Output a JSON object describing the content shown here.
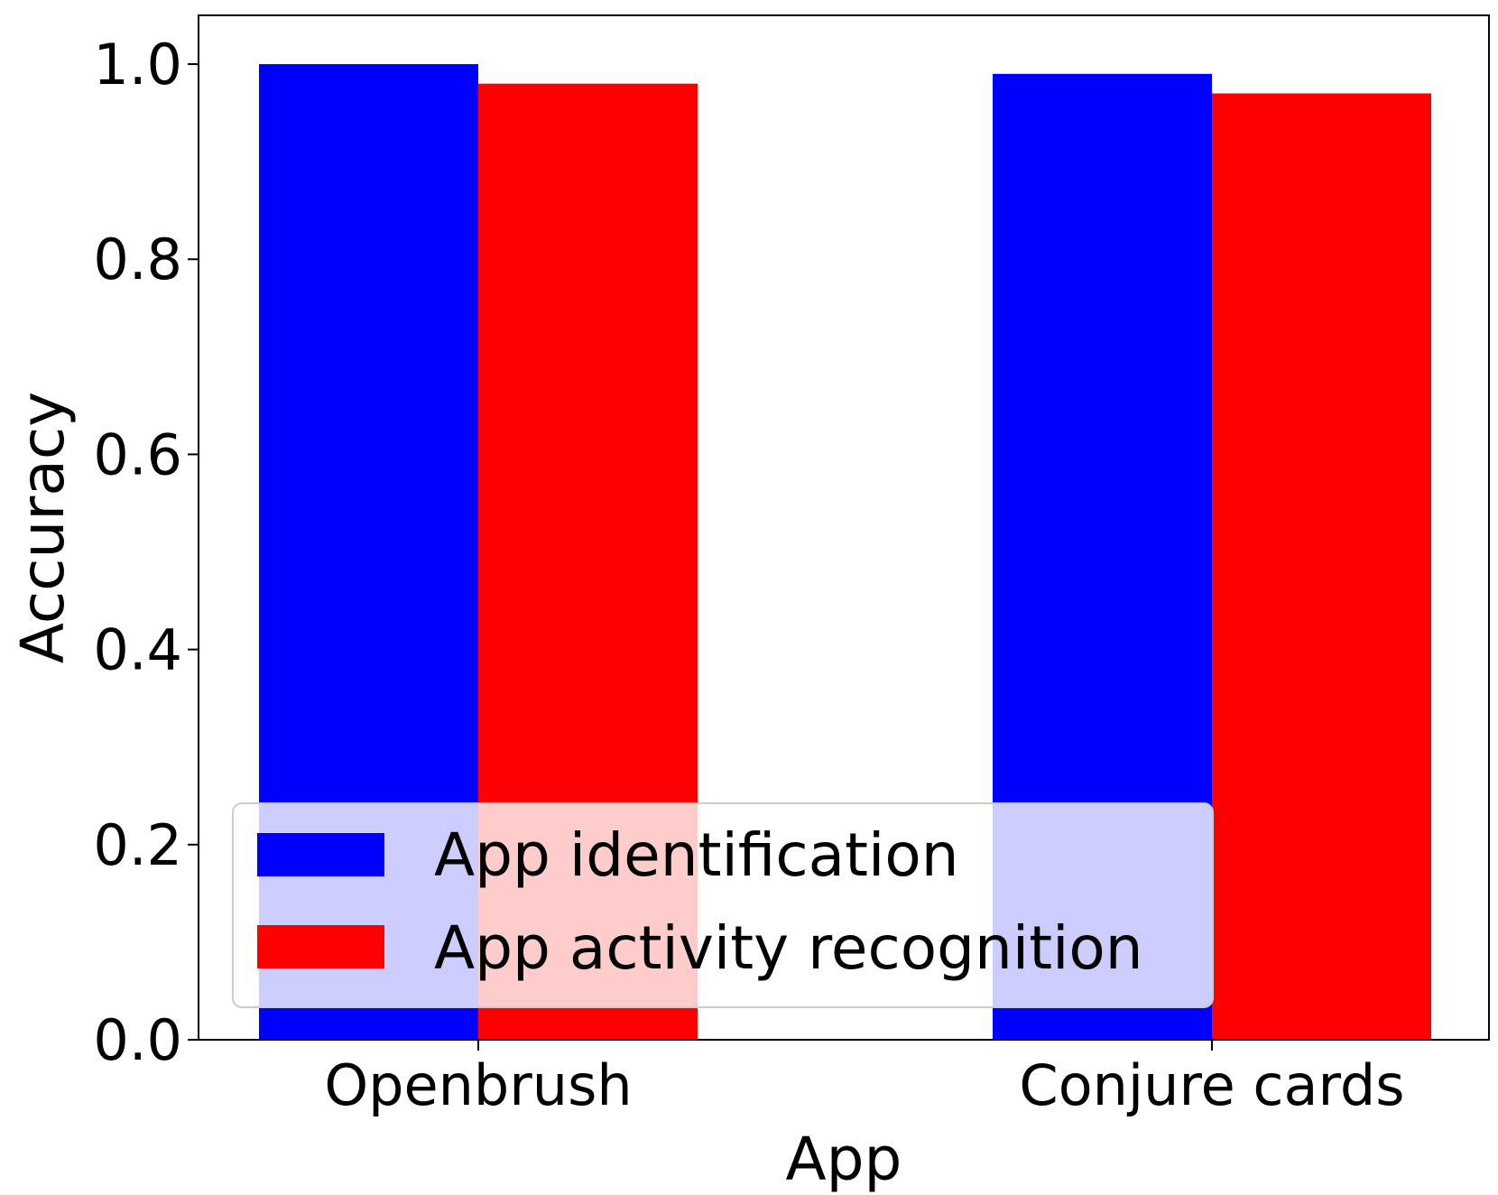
{
  "chart_data": {
    "type": "bar",
    "title": "",
    "xlabel": "App",
    "ylabel": "Accuracy",
    "categories": [
      "Openbrush",
      "Conjure cards"
    ],
    "series": [
      {
        "name": "App identification",
        "color": "#0000ff",
        "values": [
          1.0,
          0.99
        ]
      },
      {
        "name": "App activity recognition",
        "color": "#ff0000",
        "values": [
          0.98,
          0.97
        ]
      }
    ],
    "ylim": [
      0,
      1.05
    ],
    "yticks": [
      0.0,
      0.2,
      0.4,
      0.6,
      0.8,
      1.0
    ],
    "ytick_labels": [
      "0.0",
      "0.2",
      "0.4",
      "0.6",
      "0.8",
      "1.0"
    ],
    "grid": false,
    "legend_position": "lower-left"
  }
}
